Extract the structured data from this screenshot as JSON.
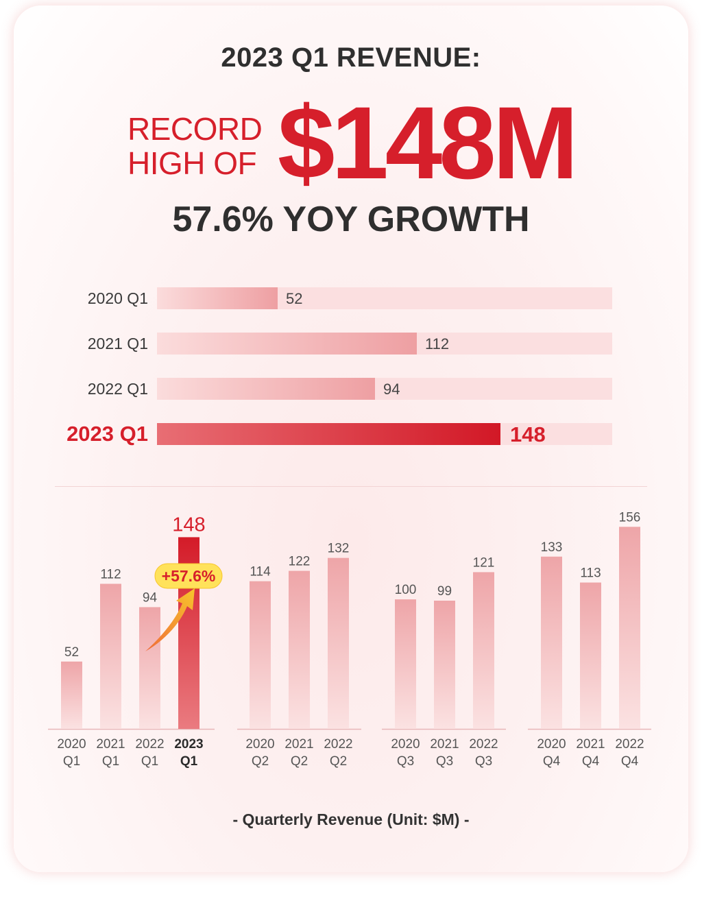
{
  "header": {
    "title": "2023 Q1 REVENUE:",
    "record_line1": "RECORD",
    "record_line2": "HIGH OF",
    "big_value": "$148M",
    "growth": "57.6% YOY GROWTH"
  },
  "colors": {
    "accent": "#d61f2b",
    "bar_light": "#f3b3b5",
    "track": "#fbdfe0",
    "text_dark": "#2f2f2f",
    "badge": "#ffe25a"
  },
  "chart_data": [
    {
      "type": "bar",
      "orientation": "horizontal",
      "categories": [
        "2020 Q1",
        "2021 Q1",
        "2022 Q1",
        "2023 Q1"
      ],
      "values": [
        52,
        112,
        94,
        148
      ],
      "highlight": "2023 Q1",
      "xlim": [
        0,
        196
      ]
    },
    {
      "type": "bar",
      "orientation": "vertical",
      "groups": [
        {
          "categories": [
            [
              "2020",
              "Q1"
            ],
            [
              "2021",
              "Q1"
            ],
            [
              "2022",
              "Q1"
            ],
            [
              "2023",
              "Q1"
            ]
          ],
          "values": [
            52,
            112,
            94,
            148
          ],
          "labels": [
            "52",
            "112",
            "94",
            "148"
          ]
        },
        {
          "categories": [
            [
              "2020",
              "Q2"
            ],
            [
              "2021",
              "Q2"
            ],
            [
              "2022",
              "Q2"
            ]
          ],
          "values": [
            114,
            122,
            132
          ],
          "labels": [
            "114",
            "122",
            "132"
          ]
        },
        {
          "categories": [
            [
              "2020",
              "Q3"
            ],
            [
              "2021",
              "Q3"
            ],
            [
              "2022",
              "Q3"
            ]
          ],
          "values": [
            100,
            99,
            121
          ],
          "labels": [
            "100",
            "99",
            "121"
          ]
        },
        {
          "categories": [
            [
              "2020",
              "Q4"
            ],
            [
              "2021",
              "Q4"
            ],
            [
              "2022",
              "Q4"
            ]
          ],
          "values": [
            133,
            113,
            156
          ],
          "labels": [
            "133",
            "113",
            "156"
          ]
        }
      ],
      "highlight": "2023 Q1",
      "annotation": "+57.6%",
      "caption": "-  Quarterly Revenue (Unit: $M)  -",
      "ylim": [
        0,
        156
      ]
    }
  ]
}
